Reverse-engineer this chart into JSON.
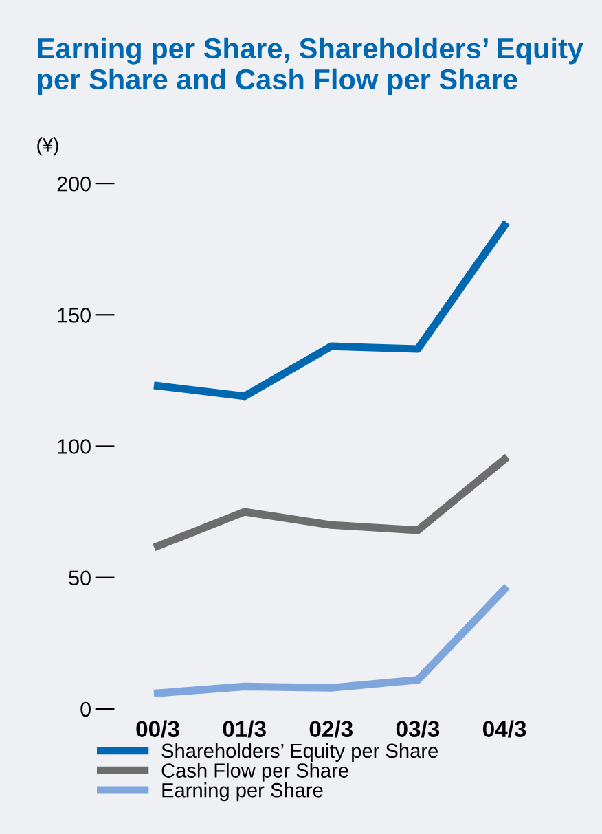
{
  "chart_data": {
    "type": "line",
    "title": "Earning per Share, Shareholders’ Equity per Share and Cash Flow per Share",
    "ylabel": "(¥)",
    "categories": [
      "00/3",
      "01/3",
      "02/3",
      "03/3",
      "04/3"
    ],
    "series": [
      {
        "name": "Shareholders’ Equity per Share",
        "color": "#0068b0",
        "values": [
          123,
          119,
          138,
          137,
          184
        ]
      },
      {
        "name": "Cash Flow per Share",
        "color": "#6d6d6d",
        "values": [
          62,
          75,
          70,
          68,
          95
        ]
      },
      {
        "name": "Earning per Share",
        "color": "#7ea6dc",
        "values": [
          6,
          8.5,
          8,
          11,
          45.5
        ]
      }
    ],
    "ylim": [
      0,
      200
    ],
    "yticks": [
      0,
      50,
      100,
      150,
      200
    ],
    "grid": false,
    "legend": "bottom",
    "marker": "none",
    "line_style": "solid"
  }
}
